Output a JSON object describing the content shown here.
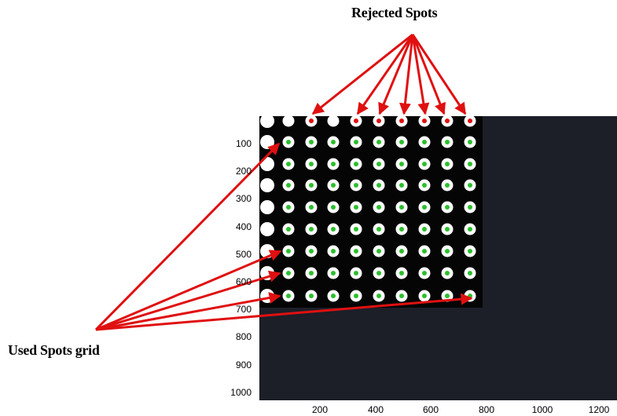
{
  "annotations": {
    "rejected_label": "Rejected Spots",
    "used_label": "Used Spots grid"
  },
  "axis": {
    "y_ticks": [
      "100",
      "200",
      "300",
      "400",
      "500",
      "600",
      "700",
      "800",
      "900",
      "1000"
    ],
    "x_ticks": [
      "200",
      "400",
      "600",
      "800",
      "1000",
      "1200"
    ]
  },
  "grid": {
    "rows": 9,
    "cols": 10,
    "rejected_row": 0,
    "rejected_cols": [
      2,
      4,
      5,
      6,
      7,
      8,
      9
    ],
    "saturated_col": 0
  },
  "colors": {
    "background": "#1c1e28",
    "grid_panel": "#050505",
    "spot": "#ffffff",
    "used_marker": "#2bbf2b",
    "rejected_marker": "#e01010",
    "arrow": "#e01010"
  }
}
